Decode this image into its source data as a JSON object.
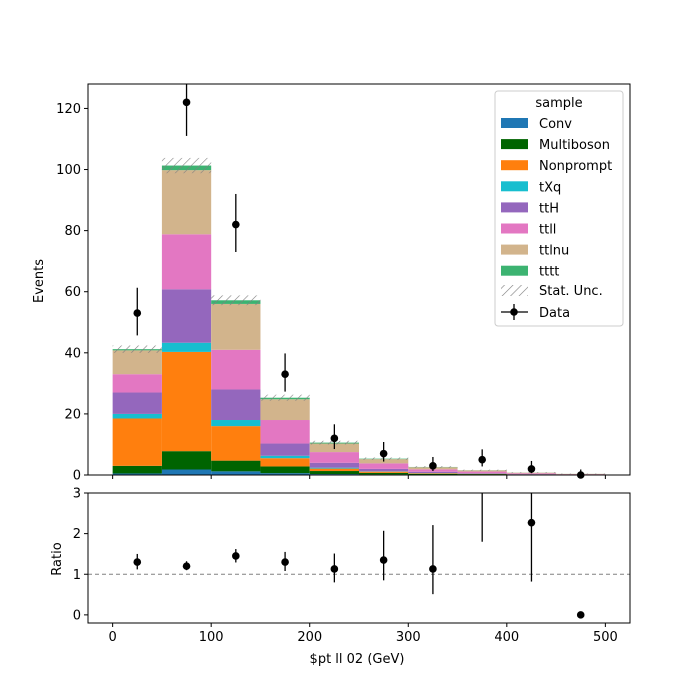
{
  "chart_data": {
    "type": "bar",
    "stacked": true,
    "xlabel": "$pt ll 02 (GeV)",
    "top_panel": {
      "ylabel": "Events",
      "ylim": [
        0,
        128
      ],
      "yticks": [
        0,
        20,
        40,
        60,
        80,
        100,
        120
      ],
      "legend_title": "sample",
      "legend_position": "top-right"
    },
    "ratio_panel": {
      "ylabel": "Ratio",
      "ylim": [
        -0.2,
        3
      ],
      "yticks": [
        0,
        1,
        2,
        3
      ],
      "reference_line": 1
    },
    "xlim": [
      -25,
      525
    ],
    "xticks": [
      0,
      100,
      200,
      300,
      400,
      500
    ],
    "bin_edges": [
      0,
      50,
      100,
      150,
      200,
      250,
      300,
      350,
      400,
      450,
      500
    ],
    "series": [
      {
        "name": "Conv",
        "color": "#1f77b4",
        "values": [
          0.5,
          1.8,
          1.2,
          0.6,
          0.3,
          0.2,
          0.1,
          0.1,
          0.05,
          0.02
        ]
      },
      {
        "name": "Multiboson",
        "color": "#006400",
        "values": [
          2.5,
          6,
          3.5,
          2.2,
          1,
          0.5,
          0.3,
          0.2,
          0.1,
          0.05
        ]
      },
      {
        "name": "Nonprompt",
        "color": "#ff7f0e",
        "values": [
          15.5,
          32.5,
          11.3,
          2.7,
          0.8,
          0.4,
          0.2,
          0.1,
          0.05,
          0.02
        ]
      },
      {
        "name": "tXq",
        "color": "#17becf",
        "values": [
          1.5,
          3,
          2,
          0.8,
          0.3,
          0.1,
          0.05,
          0.02,
          0.01,
          0.01
        ]
      },
      {
        "name": "ttH",
        "color": "#9467bd",
        "values": [
          7,
          17.5,
          10,
          4,
          1.6,
          0.8,
          0.4,
          0.2,
          0.1,
          0.05
        ]
      },
      {
        "name": "ttll",
        "color": "#e377c2",
        "values": [
          6,
          18,
          13,
          7.7,
          3.5,
          1.8,
          0.8,
          0.5,
          0.25,
          0.12
        ]
      },
      {
        "name": "ttlnu",
        "color": "#d2b48c",
        "values": [
          7.8,
          21,
          15,
          6.8,
          2.8,
          1.4,
          0.7,
          0.4,
          0.2,
          0.1
        ]
      },
      {
        "name": "tttt",
        "color": "#3cb371",
        "values": [
          0.4,
          1.5,
          1.2,
          0.5,
          0.3,
          0.15,
          0.08,
          0.04,
          0.02,
          0.01
        ]
      }
    ],
    "stat_unc": {
      "name": "Stat. Unc.",
      "values": [
        1.2,
        2.5,
        1.6,
        1,
        0.6,
        0.4,
        0.3,
        0.2,
        0.15,
        0.1
      ]
    },
    "data": {
      "name": "Data",
      "x": [
        25,
        75,
        125,
        175,
        225,
        275,
        325,
        375,
        425,
        475
      ],
      "y": [
        53,
        122,
        82,
        33,
        12,
        7,
        3,
        5,
        2,
        0
      ],
      "yerr_low": [
        7.3,
        11,
        9,
        5.7,
        3.5,
        2.6,
        1.7,
        2.2,
        1.4,
        0
      ],
      "yerr_high": [
        8.3,
        12,
        10,
        6.8,
        4.6,
        3.8,
        2.9,
        3.4,
        2.6,
        1.8
      ]
    },
    "ratio": {
      "x": [
        25,
        75,
        125,
        175,
        225,
        275,
        325,
        375,
        425,
        475
      ],
      "y": [
        1.3,
        1.2,
        1.45,
        1.3,
        1.13,
        1.35,
        1.13,
        4,
        2.27,
        0
      ],
      "yerr_low": [
        0.18,
        0.1,
        0.16,
        0.22,
        0.33,
        0.5,
        0.62,
        2.2,
        1.45,
        0
      ],
      "yerr_high": [
        0.2,
        0.12,
        0.17,
        0.25,
        0.38,
        0.72,
        1.08,
        3,
        1.55,
        0
      ]
    }
  }
}
